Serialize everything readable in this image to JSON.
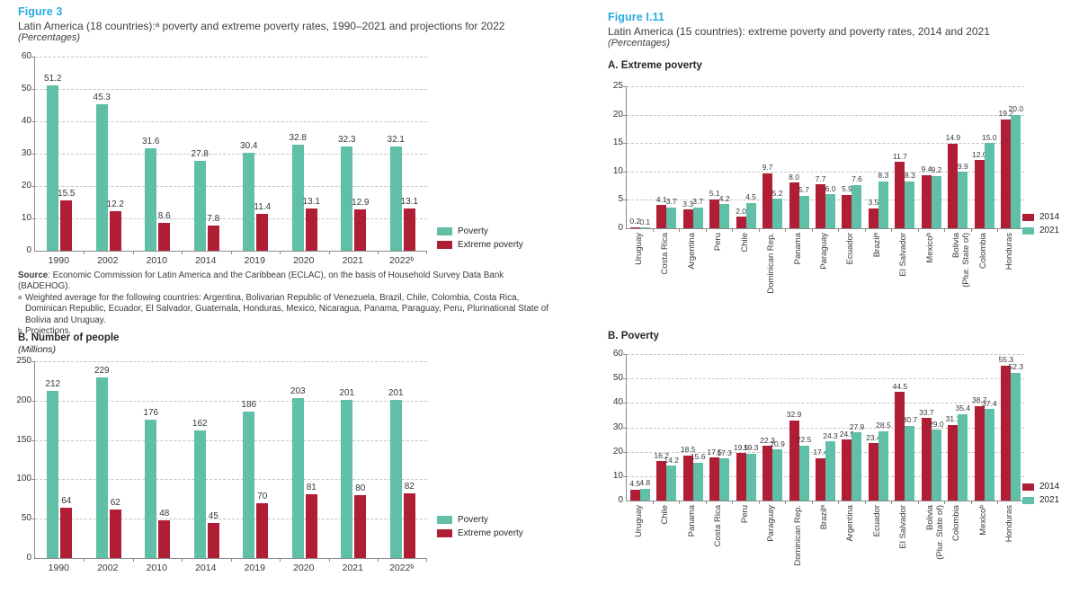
{
  "left": {
    "figure_label": "Figure 3",
    "source": {
      "label": "Source",
      "text": ": Economic Commission for Latin America and the Caribbean (ECLAC), on the basis of Household Survey Data Bank (BADEHOG)."
    },
    "footnotes": [
      {
        "marker": "a",
        "text": "Weighted average for the following countries: Argentina, Bolivarian Republic of Venezuela, Brazil, Chile, Colombia, Costa Rica, Dominican Republic, Ecuador, El Salvador, Guatemala, Honduras, Mexico, Nicaragua, Panama, Paraguay, Peru, Plurinational State of Bolivia and Uruguay."
      },
      {
        "marker": "b",
        "text": "Projections."
      }
    ]
  },
  "right": {
    "figure_label": "Figure I.11",
    "title": "Latin America (15 countries): extreme poverty and poverty rates, 2014 and 2021",
    "unit": "(Percentages)"
  },
  "colors": {
    "poverty_teal": "#5fbfa7",
    "extreme_poverty_crimson": "#b01e36",
    "figure_label_blue": "#29abe2"
  },
  "chart_data": [
    {
      "type": "bar",
      "title": "Latin America (18 countries):ᵃ poverty and extreme poverty rates, 1990–2021 and projections for 2022",
      "unit": "(Percentages)",
      "xlabel": "",
      "ylabel": "",
      "ylim": [
        0,
        60
      ],
      "ystep": 10,
      "grid": true,
      "legend_position": "right-bottom",
      "categories": [
        "1990",
        "2002",
        "2010",
        "2014",
        "2019",
        "2020",
        "2021",
        "2022ᵇ"
      ],
      "series": [
        {
          "name": "Poverty",
          "color": "#5fbfa7",
          "values": [
            "51.2",
            "45.3",
            "31.6",
            "27.8",
            "30.4",
            "32.8",
            "32.3",
            "32.1"
          ]
        },
        {
          "name": "Extreme poverty",
          "color": "#b01e36",
          "values": [
            "15.5",
            "12.2",
            "8.6",
            "7.8",
            "11.4",
            "13.1",
            "12.9",
            "13.1"
          ]
        }
      ]
    },
    {
      "type": "bar",
      "title": "B. Number of people",
      "unit": "(Millions)",
      "xlabel": "",
      "ylabel": "",
      "ylim": [
        0,
        250
      ],
      "ystep": 50,
      "grid": true,
      "legend_position": "right-bottom",
      "categories": [
        "1990",
        "2002",
        "2010",
        "2014",
        "2019",
        "2020",
        "2021",
        "2022ᵇ"
      ],
      "series": [
        {
          "name": "Poverty",
          "color": "#5fbfa7",
          "values": [
            "212",
            "229",
            "176",
            "162",
            "186",
            "203",
            "201",
            "201"
          ]
        },
        {
          "name": "Extreme poverty",
          "color": "#b01e36",
          "values": [
            "64",
            "62",
            "48",
            "45",
            "70",
            "81",
            "80",
            "82"
          ]
        }
      ]
    },
    {
      "type": "bar",
      "title": "A. Extreme poverty",
      "unit": "",
      "xlabel": "",
      "ylabel": "",
      "ylim": [
        0,
        25
      ],
      "ystep": 5,
      "grid": true,
      "legend_position": "right-bottom",
      "categories": [
        "Uruguay",
        "Costa Rica",
        "Argentina",
        "Peru",
        "Chile",
        "Dominican Rep.",
        "Panama",
        "Paraguay",
        "Ecuador",
        "Brazilᵃ",
        "El Salvador",
        "Mexicoᵇ",
        "Bolivia\n(Plur. State of)",
        "Colombia",
        "Honduras"
      ],
      "series": [
        {
          "name": "2014",
          "color": "#b01e36",
          "values": [
            "0.2",
            "4.1",
            "3.3",
            "5.1",
            "2.0",
            "9.7",
            "8.0",
            "7.7",
            "5.9",
            "3.5",
            "11.7",
            "9.4",
            "14.9",
            "12.0",
            "19.2"
          ]
        },
        {
          "name": "2021",
          "color": "#5fbfa7",
          "values": [
            "0.1",
            "3.7",
            "3.7",
            "4.2",
            "4.5",
            "5.2",
            "5.7",
            "6.0",
            "7.6",
            "8.3",
            "8.3",
            "9.2",
            "9.9",
            "15.0",
            "20.0"
          ]
        }
      ]
    },
    {
      "type": "bar",
      "title": "B. Poverty",
      "unit": "",
      "xlabel": "",
      "ylabel": "",
      "ylim": [
        0,
        60
      ],
      "ystep": 10,
      "grid": true,
      "legend_position": "right-bottom",
      "categories": [
        "Uruguay",
        "Chile",
        "Panama",
        "Costa Rica",
        "Peru",
        "Paraguay",
        "Dominican Rep.",
        "Brazilᵃ",
        "Argentina",
        "Ecuador",
        "El Salvador",
        "Bolivia\n(Plur. State of)",
        "Colombia",
        "Mexicoᵇ",
        "Honduras"
      ],
      "series": [
        {
          "name": "2014",
          "color": "#b01e36",
          "values": [
            "4.5",
            "16.2",
            "18.5",
            "17.5",
            "19.5",
            "22.3",
            "32.9",
            "17.4",
            "24.9",
            "23.4",
            "44.5",
            "33.7",
            "31.1",
            "38.7",
            "55.3"
          ]
        },
        {
          "name": "2021",
          "color": "#5fbfa7",
          "values": [
            "4.8",
            "14.2",
            "15.6",
            "17.3",
            "19.3",
            "20.9",
            "22.5",
            "24.3",
            "27.9",
            "28.5",
            "30.7",
            "29.0",
            "35.4",
            "37.4",
            "52.3"
          ]
        }
      ]
    }
  ]
}
